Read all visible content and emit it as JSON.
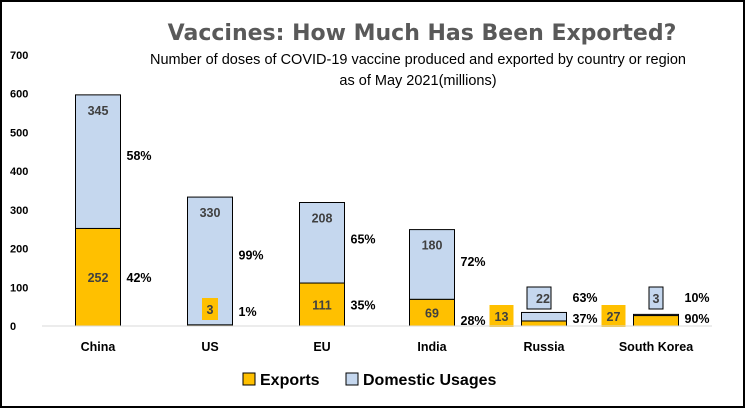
{
  "chart_data": {
    "type": "bar",
    "stacked": true,
    "title": "Vaccines: How Much Has Been Exported?",
    "subtitle_lines": [
      "Number of doses of COVID-19 vaccine produced and exported by country or region",
      "as of May 2021(millions)"
    ],
    "categories": [
      "China",
      "US",
      "EU",
      "India",
      "Russia",
      "South Korea"
    ],
    "series": [
      {
        "name": "Exports",
        "color": "#FFC000",
        "values": [
          252,
          3,
          111,
          69,
          13,
          27
        ]
      },
      {
        "name": "Domestic Usages",
        "color": "#C5D7EE",
        "values": [
          345,
          330,
          208,
          180,
          22,
          3
        ]
      }
    ],
    "export_pct_labels": [
      "42%",
      "1%",
      "35%",
      "28%",
      "37%",
      "90%"
    ],
    "domestic_pct_labels": [
      "58%",
      "99%",
      "65%",
      "72%",
      "63%",
      "10%"
    ],
    "ylim": [
      0,
      700
    ],
    "yticks": [
      0,
      100,
      200,
      300,
      400,
      500,
      600,
      700
    ],
    "xlabel": "",
    "ylabel": "",
    "legend_position": "bottom",
    "grid": false
  }
}
